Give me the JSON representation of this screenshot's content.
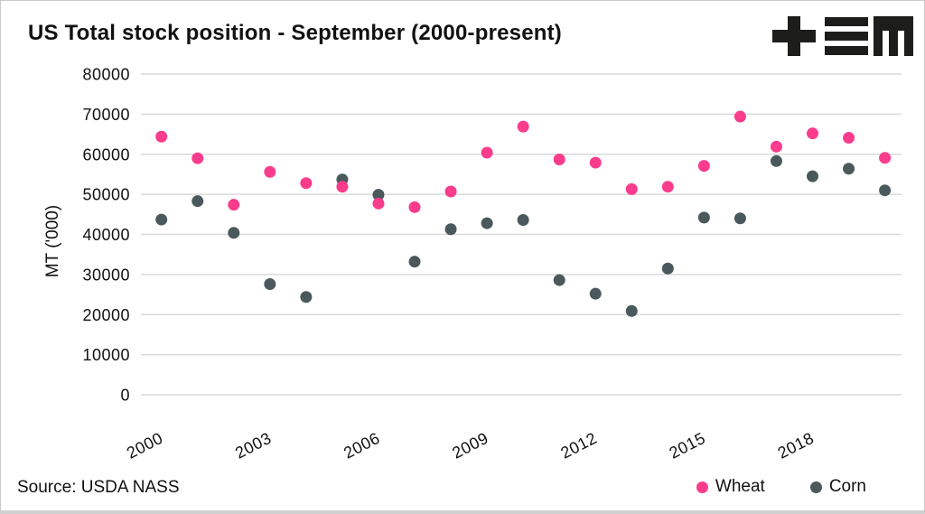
{
  "title": "US Total stock position - September (2000-present)",
  "source": "Source: USDA NASS",
  "logo": {
    "glyphs": [
      "plus",
      "triple-bar",
      "blocky-m"
    ],
    "color": "#1d1d1b"
  },
  "colors": {
    "wheat_pink": "#fa3c8d",
    "corn_slate": "#4a595c",
    "gridline": "#d9d9d9",
    "text": "#111111",
    "frame_border": "#c9c9c9"
  },
  "legend": [
    {
      "label": "Wheat",
      "color": "#fa3c8d"
    },
    {
      "label": "Corn",
      "color": "#4a595c"
    }
  ],
  "chart_data": {
    "type": "scatter",
    "title": "US Total stock position - September (2000-present)",
    "xlabel": "",
    "ylabel": "MT ('000)",
    "ylim": [
      0,
      80000
    ],
    "ytick_step": 10000,
    "grid": true,
    "legend_position": "bottom-right",
    "x": [
      2000,
      2001,
      2002,
      2003,
      2004,
      2005,
      2006,
      2007,
      2008,
      2009,
      2010,
      2011,
      2012,
      2013,
      2014,
      2015,
      2016,
      2017,
      2018,
      2019,
      2020
    ],
    "xticks": [
      2000,
      2003,
      2006,
      2009,
      2012,
      2015,
      2018
    ],
    "series": [
      {
        "name": "Wheat",
        "color": "#fa3c8d",
        "values": [
          64400,
          59000,
          47400,
          55600,
          52800,
          51900,
          47700,
          46800,
          50700,
          60400,
          66900,
          58700,
          57900,
          51300,
          51900,
          57100,
          69400,
          61900,
          65200,
          64100,
          59100
        ]
      },
      {
        "name": "Corn",
        "color": "#4a595c",
        "values": [
          43700,
          48300,
          40400,
          27600,
          24400,
          53700,
          49900,
          33200,
          41300,
          42800,
          43600,
          28600,
          25200,
          20900,
          31500,
          44200,
          44000,
          58300,
          54500,
          56400,
          51000
        ]
      }
    ]
  }
}
